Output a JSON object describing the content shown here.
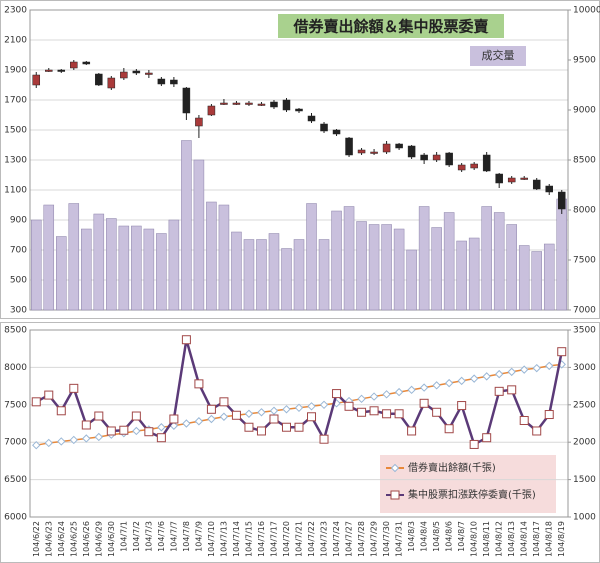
{
  "chart_data": [
    {
      "type": "candlestick_bar",
      "title": "借券賣出餘額＆集中股票委賣",
      "series": [
        {
          "name": "成交量",
          "color": "#c9c0dd",
          "axis": "y",
          "values": [
            900,
            1000,
            790,
            1010,
            840,
            940,
            910,
            860,
            860,
            840,
            810,
            900,
            1430,
            1300,
            1020,
            1000,
            820,
            770,
            770,
            810,
            710,
            770,
            1010,
            770,
            960,
            990,
            890,
            870,
            870,
            840,
            700,
            990,
            850,
            950,
            760,
            780,
            990,
            950,
            870,
            730,
            690,
            740,
            1040
          ]
        }
      ],
      "candles": {
        "axis": "y2",
        "up_color": "#a93a3a",
        "down_color": "#222222",
        "open": [
          9250,
          9390,
          9400,
          9420,
          9480,
          9360,
          9220,
          9320,
          9390,
          9370,
          9310,
          9300,
          9220,
          8840,
          8950,
          9060,
          9070,
          9060,
          9060,
          9080,
          9100,
          9010,
          8940,
          8860,
          8800,
          8720,
          8570,
          8570,
          8580,
          8660,
          8640,
          8550,
          8500,
          8570,
          8400,
          8420,
          8550,
          8360,
          8280,
          8310,
          8300,
          8240,
          8180
        ],
        "high": [
          9380,
          9420,
          9410,
          9500,
          9490,
          9370,
          9340,
          9420,
          9410,
          9400,
          9330,
          9330,
          9230,
          8950,
          9060,
          9110,
          9090,
          9090,
          9080,
          9100,
          9120,
          9020,
          8970,
          8880,
          8810,
          8730,
          8620,
          8610,
          8690,
          8670,
          8650,
          8570,
          8580,
          8580,
          8470,
          8480,
          8580,
          8370,
          8340,
          8340,
          8320,
          8260,
          8200
        ],
        "low": [
          9220,
          9380,
          9370,
          9400,
          9450,
          9240,
          9200,
          9300,
          9350,
          9320,
          9240,
          9230,
          8900,
          8720,
          8940,
          9050,
          9050,
          9040,
          9040,
          9010,
          8980,
          8970,
          8870,
          8770,
          8740,
          8530,
          8550,
          8550,
          8560,
          8600,
          8510,
          8460,
          8480,
          8430,
          8380,
          8400,
          8380,
          8220,
          8260,
          8300,
          8200,
          8150,
          7960
        ],
        "close": [
          9350,
          9400,
          9390,
          9480,
          9460,
          9250,
          9320,
          9380,
          9370,
          9370,
          9260,
          9260,
          8970,
          8920,
          9040,
          9070,
          9070,
          9070,
          9060,
          9030,
          9000,
          8990,
          8890,
          8790,
          8760,
          8550,
          8600,
          8580,
          8660,
          8620,
          8530,
          8500,
          8550,
          8450,
          8450,
          8460,
          8390,
          8270,
          8320,
          8320,
          8210,
          8180,
          8010
        ]
      },
      "ylim": [
        300,
        2300
      ],
      "yticks": [
        300,
        500,
        700,
        900,
        1100,
        1300,
        1500,
        1700,
        1900,
        2100,
        2300
      ],
      "y2lim": [
        7000,
        10000
      ],
      "y2ticks": [
        7000,
        7500,
        8000,
        8500,
        9000,
        9500,
        10000
      ],
      "grid": true
    },
    {
      "type": "line",
      "categories": [
        "104/6/22",
        "104/6/23",
        "104/6/24",
        "104/6/25",
        "104/6/26",
        "104/6/29",
        "104/6/30",
        "104/7/1",
        "104/7/2",
        "104/7/3",
        "104/7/6",
        "104/7/7",
        "104/7/8",
        "104/7/9",
        "104/7/10",
        "104/7/13",
        "104/7/14",
        "104/7/15",
        "104/7/16",
        "104/7/17",
        "104/7/20",
        "104/7/21",
        "104/7/22",
        "104/7/23",
        "104/7/24",
        "104/7/27",
        "104/7/28",
        "104/7/29",
        "104/7/30",
        "104/7/31",
        "104/8/3",
        "104/8/4",
        "104/8/5",
        "104/8/6",
        "104/8/7",
        "104/8/10",
        "104/8/11",
        "104/8/12",
        "104/8/13",
        "104/8/14",
        "104/8/17",
        "104/8/18",
        "104/8/19"
      ],
      "series": [
        {
          "name": "借券賣出餘額(千張)",
          "color": "#e8883a",
          "axis": "y",
          "marker": "diamond",
          "values": [
            6960,
            6990,
            7010,
            7030,
            7050,
            7070,
            7100,
            7120,
            7150,
            7170,
            7200,
            7220,
            7250,
            7280,
            7310,
            7340,
            7360,
            7380,
            7400,
            7420,
            7440,
            7460,
            7480,
            7500,
            7520,
            7550,
            7580,
            7610,
            7640,
            7670,
            7700,
            7730,
            7760,
            7790,
            7820,
            7850,
            7880,
            7910,
            7940,
            7970,
            7990,
            8020,
            8040
          ]
        },
        {
          "name": "集中股票扣漲跌停委賣(千張)",
          "color": "#5b3a78",
          "axis": "y2",
          "marker": "square",
          "values": [
            2540,
            2630,
            2420,
            2720,
            2230,
            2350,
            2150,
            2160,
            2350,
            2140,
            2060,
            2310,
            3370,
            2780,
            2440,
            2540,
            2360,
            2200,
            2150,
            2310,
            2200,
            2200,
            2340,
            2040,
            2650,
            2480,
            2400,
            2420,
            2380,
            2380,
            2150,
            2520,
            2400,
            2180,
            2490,
            1970,
            2060,
            2680,
            2700,
            2290,
            2150,
            2370,
            3210
          ]
        }
      ],
      "ylim": [
        6000,
        8500
      ],
      "yticks": [
        6000,
        6500,
        7000,
        7500,
        8000,
        8500
      ],
      "y2lim": [
        1000,
        3500
      ],
      "y2ticks": [
        1000,
        1500,
        2000,
        2500,
        3000,
        3500
      ],
      "grid": true
    }
  ]
}
